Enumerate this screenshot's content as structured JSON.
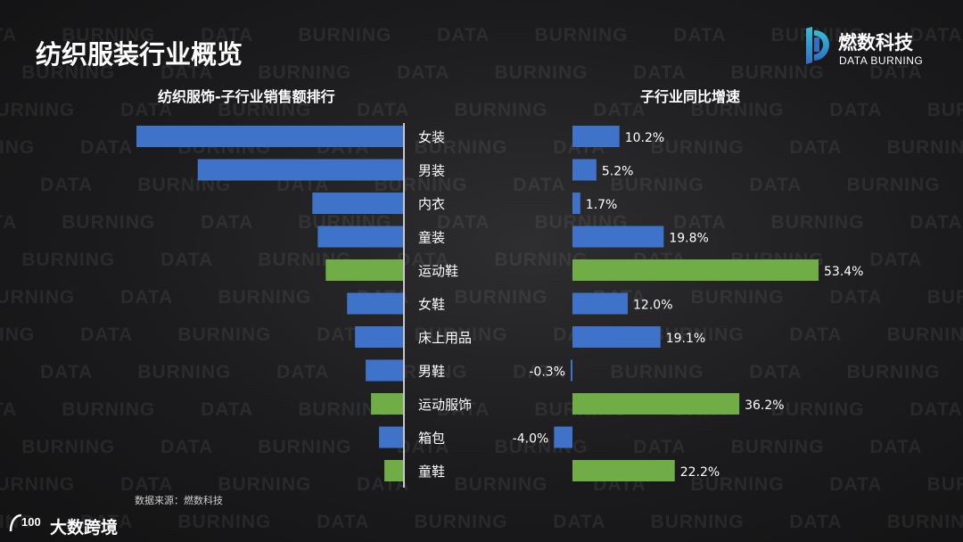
{
  "page": {
    "title": "纺织服装行业概览",
    "source_note": "数据来源：燃数科技",
    "watermark_text": "DATA BURNING"
  },
  "logo": {
    "name_cn": "燃数科技",
    "name_en": "DATA BURNING",
    "accent_color": "#3e83c6"
  },
  "bottom_logo": {
    "text": "大数跨境",
    "mark": "100"
  },
  "colors": {
    "blue": "#3f73c9",
    "green": "#70ad47",
    "text": "#ffffff"
  },
  "chart_data": [
    {
      "type": "bar",
      "orientation": "horizontal",
      "title": "纺织服饰-子行业销售额排行",
      "categories": [
        "女装",
        "男装",
        "内衣",
        "童装",
        "运动鞋",
        "女鞋",
        "床上用品",
        "男鞋",
        "运动服饰",
        "箱包",
        "童鞋"
      ],
      "values": [
        100,
        77,
        34,
        32,
        29,
        21,
        18,
        14,
        12,
        9,
        7
      ],
      "highlight": [
        false,
        false,
        false,
        false,
        true,
        false,
        false,
        false,
        true,
        false,
        true
      ],
      "value_units": "relative (no axis shown)",
      "xlabel": "",
      "ylabel": ""
    },
    {
      "type": "bar",
      "orientation": "horizontal",
      "title": "子行业同比增速",
      "categories": [
        "女装",
        "男装",
        "内衣",
        "童装",
        "运动鞋",
        "女鞋",
        "床上用品",
        "男鞋",
        "运动服饰",
        "箱包",
        "童鞋"
      ],
      "values": [
        10.2,
        5.2,
        1.7,
        19.8,
        53.4,
        12.0,
        19.1,
        -0.3,
        36.2,
        -4.0,
        22.2
      ],
      "labels": [
        "10.2%",
        "5.2%",
        "1.7%",
        "19.8%",
        "53.4%",
        "12.0%",
        "19.1%",
        "-0.3%",
        "36.2%",
        "-4.0%",
        "22.2%"
      ],
      "highlight": [
        false,
        false,
        false,
        false,
        true,
        false,
        false,
        false,
        true,
        false,
        true
      ],
      "value_units": "%",
      "xlim": [
        -4.0,
        53.4
      ],
      "xlabel": "",
      "ylabel": ""
    }
  ]
}
